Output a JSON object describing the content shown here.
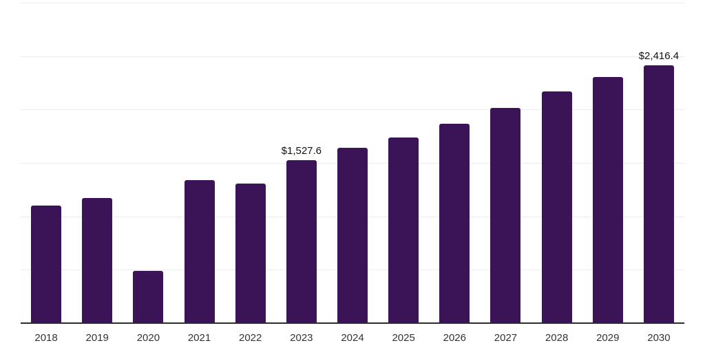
{
  "chart_data": {
    "type": "bar",
    "title": "",
    "xlabel": "",
    "ylabel": "",
    "categories": [
      "2018",
      "2019",
      "2020",
      "2021",
      "2022",
      "2023",
      "2024",
      "2025",
      "2026",
      "2027",
      "2028",
      "2029",
      "2030"
    ],
    "values": [
      1100,
      1172,
      490,
      1340,
      1305,
      1527.6,
      1640,
      1740,
      1870,
      2015,
      2170,
      2305,
      2416.4
    ],
    "data_labels": {
      "5": "$1,527.6",
      "12": "$2,416.4"
    },
    "ylim": [
      0,
      3000
    ],
    "gridline_values": [
      500,
      1000,
      1500,
      2000,
      2500,
      3000
    ],
    "grid": "horizontal-only",
    "legend": "none",
    "y_tick_labels": "none"
  },
  "colors": {
    "background": "#ffffff",
    "bar": "#3a1457",
    "gridline": "#ececec",
    "axis_line": "#2b2b2b",
    "data_label_text": "#111111",
    "x_label_text": "#333333"
  }
}
